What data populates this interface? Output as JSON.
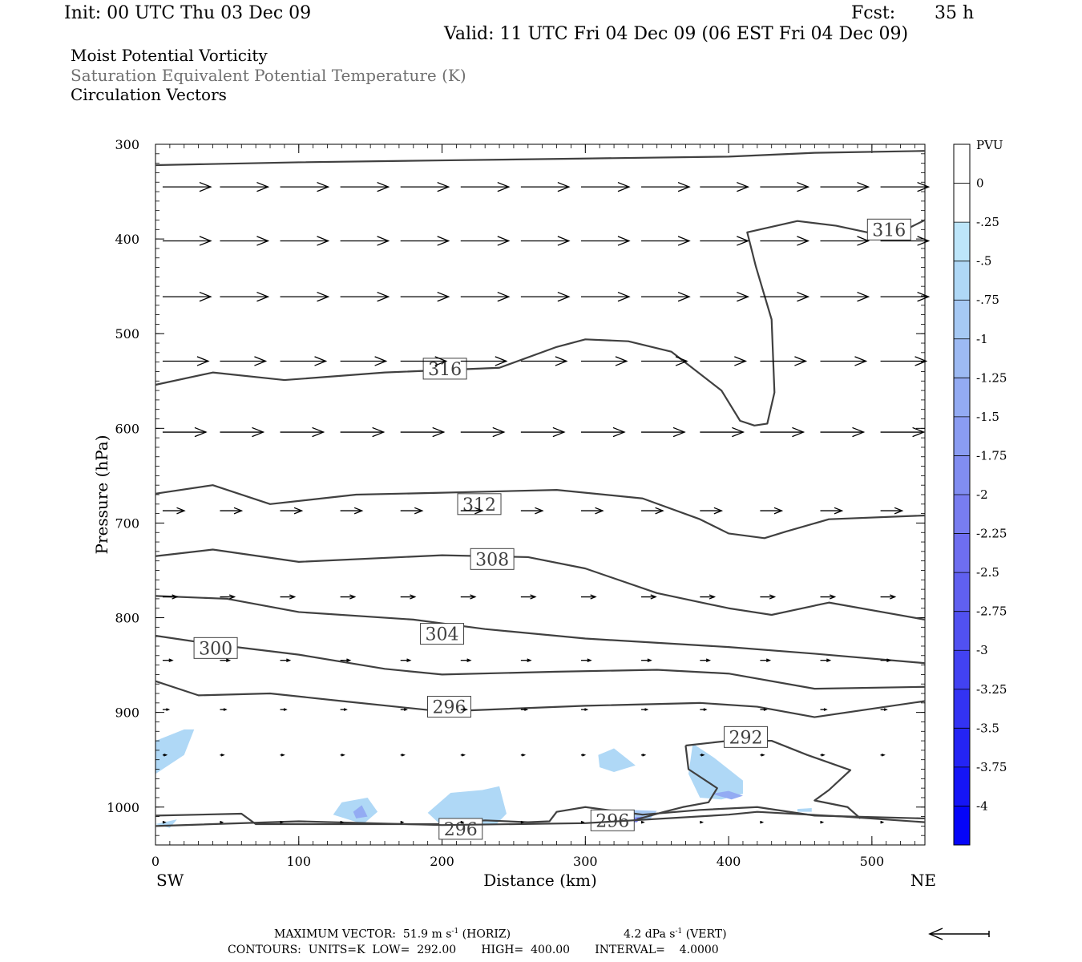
{
  "header": {
    "init": "Init: 00 UTC Thu 03 Dec 09",
    "fcst_label": "Fcst:",
    "fcst_value": "35 h",
    "valid": "Valid: 11 UTC Fri 04 Dec 09 (06 EST Fri 04 Dec 09)"
  },
  "legend_titles": [
    "Moist Potential Vorticity",
    "Saturation Equivalent Potential Temperature (K)",
    "Circulation Vectors"
  ],
  "footer": {
    "max_vector_text": "MAXIMUM VECTOR:  51.9 m s",
    "max_vector_horiz": "(HORIZ)",
    "max_vector_vert_value": "4.2 dPa s",
    "max_vector_vert": "(VERT)",
    "exp": "-1",
    "contours_text": "CONTOURS:  UNITS=K  LOW=  292.00       HIGH=  400.00       INTERVAL=    4.0000"
  },
  "chart_data": {
    "type": "cross-section",
    "xlabel": "Distance (km)",
    "ylabel": "Pressure (hPa)",
    "xlim": [
      0,
      537
    ],
    "ylim": [
      1040,
      300
    ],
    "x_ticks": [
      0,
      100,
      200,
      300,
      400,
      500
    ],
    "y_ticks": [
      300,
      400,
      500,
      600,
      700,
      800,
      900,
      1000
    ],
    "left_end_label": "SW",
    "right_end_label": "NE",
    "colorbar": {
      "units": "PVU",
      "levels": [
        "0",
        "-.25",
        "-.5",
        "-.75",
        "-1",
        "-1.25",
        "-1.5",
        "-1.75",
        "-2",
        "-2.25",
        "-2.5",
        "-2.75",
        "-3",
        "-3.25",
        "-3.5",
        "-3.75",
        "-4"
      ],
      "colors": [
        "#ffffff",
        "#ffffff",
        "#bde6fa",
        "#afd8f6",
        "#a6c9f4",
        "#9dbaf3",
        "#93abf3",
        "#8a9cf2",
        "#818df1",
        "#787df0",
        "#6e6ef0",
        "#6060f0",
        "#5151f1",
        "#4242f2",
        "#3333f3",
        "#2424f4",
        "#1515f6",
        "#0505f8"
      ]
    },
    "contours": [
      {
        "label": "",
        "points": [
          [
            0,
            322
          ],
          [
            100,
            319
          ],
          [
            200,
            317
          ],
          [
            300,
            315
          ],
          [
            400,
            313
          ],
          [
            460,
            309
          ],
          [
            537,
            307
          ]
        ]
      },
      {
        "label": "316",
        "label_at": [
          202,
          537
        ],
        "points": [
          [
            0,
            554
          ],
          [
            40,
            541
          ],
          [
            90,
            549
          ],
          [
            160,
            541
          ],
          [
            240,
            536
          ],
          [
            280,
            514
          ],
          [
            300,
            506
          ],
          [
            330,
            508
          ],
          [
            360,
            519
          ],
          [
            395,
            560
          ],
          [
            408,
            592
          ],
          [
            418,
            597
          ],
          [
            427,
            595
          ],
          [
            432,
            562
          ],
          [
            430,
            485
          ],
          [
            419,
            429
          ],
          [
            413,
            393
          ],
          [
            448,
            381
          ],
          [
            475,
            386
          ],
          [
            500,
            394
          ],
          [
            525,
            389
          ],
          [
            537,
            380
          ]
        ]
      },
      {
        "label": "316",
        "label_at": [
          512,
          390
        ],
        "points": []
      },
      {
        "label": "312",
        "label_at": [
          226,
          680
        ],
        "points": [
          [
            0,
            669
          ],
          [
            40,
            660
          ],
          [
            80,
            680
          ],
          [
            140,
            670
          ],
          [
            200,
            668
          ],
          [
            280,
            665
          ],
          [
            340,
            674
          ],
          [
            380,
            696
          ],
          [
            400,
            711
          ],
          [
            425,
            716
          ],
          [
            440,
            709
          ],
          [
            470,
            696
          ],
          [
            537,
            692
          ]
        ]
      },
      {
        "label": "308",
        "label_at": [
          235,
          738
        ],
        "points": [
          [
            0,
            735
          ],
          [
            40,
            728
          ],
          [
            100,
            741
          ],
          [
            200,
            734
          ],
          [
            260,
            736
          ],
          [
            300,
            748
          ],
          [
            350,
            774
          ],
          [
            400,
            790
          ],
          [
            430,
            797
          ],
          [
            470,
            784
          ],
          [
            537,
            802
          ]
        ]
      },
      {
        "label": "304",
        "label_at": [
          200,
          817
        ],
        "points": [
          [
            0,
            777
          ],
          [
            50,
            780
          ],
          [
            100,
            794
          ],
          [
            180,
            802
          ],
          [
            230,
            812
          ],
          [
            300,
            822
          ],
          [
            400,
            831
          ],
          [
            460,
            838
          ],
          [
            537,
            848
          ]
        ]
      },
      {
        "label": "300",
        "label_at": [
          42,
          832
        ],
        "points": [
          [
            0,
            819
          ],
          [
            40,
            828
          ],
          [
            100,
            839
          ],
          [
            160,
            854
          ],
          [
            200,
            860
          ],
          [
            280,
            857
          ],
          [
            350,
            855
          ],
          [
            400,
            859
          ],
          [
            460,
            875
          ],
          [
            537,
            873
          ]
        ]
      },
      {
        "label": "296",
        "label_at": [
          205,
          894
        ],
        "points": [
          [
            0,
            867
          ],
          [
            30,
            882
          ],
          [
            80,
            880
          ],
          [
            130,
            888
          ],
          [
            200,
            899
          ],
          [
            300,
            893
          ],
          [
            380,
            890
          ],
          [
            420,
            894
          ],
          [
            460,
            905
          ],
          [
            537,
            888
          ]
        ]
      },
      {
        "label": "292",
        "label_at": [
          412,
          926
        ],
        "points": [
          [
            370,
            935
          ],
          [
            400,
            930
          ],
          [
            430,
            930
          ],
          [
            455,
            945
          ],
          [
            485,
            961
          ],
          [
            470,
            982
          ],
          [
            460,
            993
          ],
          [
            483,
            1000
          ],
          [
            492,
            1012
          ]
        ]
      },
      {
        "label": "",
        "points": [
          [
            370,
            935
          ],
          [
            372,
            960
          ],
          [
            392,
            980
          ],
          [
            386,
            995
          ],
          [
            368,
            1000
          ],
          [
            355,
            1005
          ],
          [
            336,
            1013
          ]
        ]
      },
      {
        "label": "296",
        "label_at": [
          213,
          1023
        ],
        "points": [
          [
            0,
            1009
          ],
          [
            60,
            1007
          ],
          [
            70,
            1018
          ],
          [
            200,
            1018
          ],
          [
            230,
            1014
          ],
          [
            260,
            1016
          ],
          [
            275,
            1015
          ],
          [
            280,
            1005
          ],
          [
            300,
            1000
          ],
          [
            340,
            1008
          ],
          [
            380,
            1003
          ],
          [
            420,
            1000
          ],
          [
            460,
            1009
          ],
          [
            537,
            1012
          ]
        ]
      },
      {
        "label": "296",
        "label_at": [
          319,
          1014
        ],
        "points": []
      },
      {
        "label": "",
        "points": [
          [
            0,
            1020
          ],
          [
            100,
            1015
          ],
          [
            200,
            1019
          ],
          [
            300,
            1017
          ],
          [
            400,
            1008
          ],
          [
            420,
            1005
          ],
          [
            480,
            1010
          ],
          [
            537,
            1016
          ]
        ]
      }
    ],
    "pv_shading": [
      {
        "value": -0.5,
        "points": [
          [
            0,
            930
          ],
          [
            20,
            918
          ],
          [
            27,
            918
          ],
          [
            20,
            945
          ],
          [
            0,
            965
          ]
        ]
      },
      {
        "value": -0.5,
        "points": [
          [
            124,
            1008
          ],
          [
            130,
            995
          ],
          [
            148,
            990
          ],
          [
            155,
            1005
          ],
          [
            145,
            1018
          ]
        ]
      },
      {
        "value": -1.25,
        "points": [
          [
            138,
            1005
          ],
          [
            144,
            998
          ],
          [
            148,
            1010
          ],
          [
            140,
            1012
          ]
        ]
      },
      {
        "value": -0.5,
        "points": [
          [
            190,
            1006
          ],
          [
            206,
            985
          ],
          [
            228,
            982
          ],
          [
            240,
            978
          ],
          [
            245,
            1007
          ],
          [
            238,
            1018
          ],
          [
            200,
            1020
          ]
        ]
      },
      {
        "value": -0.75,
        "points": [
          [
            305,
            1015
          ],
          [
            330,
            1003
          ],
          [
            350,
            1004
          ],
          [
            345,
            1013
          ],
          [
            315,
            1018
          ]
        ]
      },
      {
        "value": -2.0,
        "points": [
          [
            325,
            1013
          ],
          [
            340,
            1010
          ],
          [
            336,
            1016
          ],
          [
            328,
            1016
          ]
        ]
      },
      {
        "value": -0.5,
        "points": [
          [
            309,
            945
          ],
          [
            320,
            938
          ],
          [
            335,
            956
          ],
          [
            320,
            963
          ],
          [
            310,
            958
          ]
        ]
      },
      {
        "value": -0.5,
        "points": [
          [
            375,
            933
          ],
          [
            390,
            948
          ],
          [
            410,
            972
          ],
          [
            410,
            986
          ],
          [
            395,
            992
          ],
          [
            380,
            990
          ],
          [
            372,
            965
          ]
        ]
      },
      {
        "value": -1.25,
        "points": [
          [
            388,
            986
          ],
          [
            400,
            983
          ],
          [
            410,
            988
          ],
          [
            402,
            992
          ]
        ]
      },
      {
        "value": -0.5,
        "points": [
          [
            448,
            1002
          ],
          [
            458,
            1001
          ],
          [
            458,
            1005
          ],
          [
            448,
            1005
          ]
        ]
      },
      {
        "value": -0.5,
        "points": [
          [
            0,
            1018
          ],
          [
            15,
            1013
          ],
          [
            10,
            1022
          ]
        ]
      }
    ],
    "vectors": {
      "rows": [
        {
          "p": 345,
          "u": 40,
          "w": 0
        },
        {
          "p": 402,
          "u": 40,
          "w": 0
        },
        {
          "p": 461,
          "u": 40,
          "w": 0
        },
        {
          "p": 529,
          "u": 38,
          "w": 0
        },
        {
          "p": 604,
          "u": 36,
          "w": 0
        },
        {
          "p": 687,
          "u": 18,
          "w": 0
        },
        {
          "p": 778,
          "u": 12,
          "w": 0
        },
        {
          "p": 845,
          "u": 8,
          "w": 0
        },
        {
          "p": 897,
          "u": 5,
          "w": 0
        },
        {
          "p": 945,
          "u": 3,
          "w": 0
        },
        {
          "p": 1016,
          "u": 2,
          "w": 0
        }
      ],
      "x_positions": [
        5,
        45,
        87,
        129,
        171,
        213,
        255,
        297,
        339,
        380,
        422,
        464,
        506
      ]
    }
  }
}
